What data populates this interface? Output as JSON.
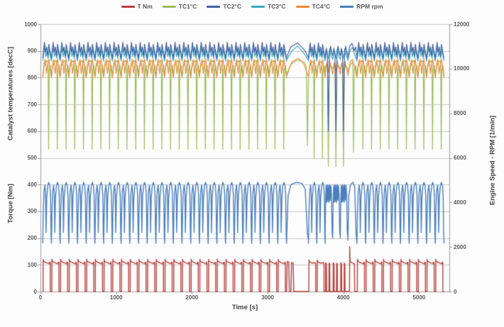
{
  "legend": {
    "items": [
      {
        "label": "T Nm",
        "color": "#B5423E"
      },
      {
        "label": "TC1°C",
        "color": "#9BBB59"
      },
      {
        "label": "TC2°C",
        "color": "#44609D"
      },
      {
        "label": "TC3°C",
        "color": "#3BA7C4"
      },
      {
        "label": "TC4°C",
        "color": "#EE8A3C"
      },
      {
        "label": "RPM rpm",
        "color": "#4A7EBB"
      }
    ]
  },
  "chart_data": {
    "type": "line",
    "title": "",
    "xlabel": "Time [s]",
    "grid": "horizontal",
    "legend_position": "top",
    "axes": {
      "x": {
        "min": 0,
        "max": 5400,
        "ticks": [
          0,
          1000,
          2000,
          3000,
          4000,
          5000
        ]
      },
      "y_left": {
        "min": 0,
        "max": 1000,
        "tick_step": 100,
        "titles": [
          "Catalyst temperatures [decC]",
          "Torque [Nm]"
        ]
      },
      "y_right": {
        "min": 0,
        "max": 12000,
        "tick_step": 2000,
        "title": "Engine Speed - RPM [1/min]"
      }
    },
    "series": [
      {
        "name": "T Nm",
        "axis": "left",
        "color": "#B5423E",
        "description": "Torque square-wave pulses 0 to ~105-120 Nm each cycle, single ~170 Nm spike near 4090 s"
      },
      {
        "name": "TC1°C",
        "axis": "left",
        "color": "#9BBB59",
        "description": "Catalyst temp ~805-865 degC with sharp dip to ~530 each cycle (to ~470 in anomaly cycles)"
      },
      {
        "name": "TC2°C",
        "axis": "left",
        "color": "#44609D",
        "description": "Catalyst temp ~870-935 degC spiky top band, dips to ~600 during anomaly cycles"
      },
      {
        "name": "TC3°C",
        "axis": "left",
        "color": "#3BA7C4",
        "description": "Catalyst temp ~860-918 degC spiky band"
      },
      {
        "name": "TC4°C",
        "axis": "left",
        "color": "#EE8A3C",
        "description": "Catalyst temp ~800-872 degC wavy band"
      },
      {
        "name": "RPM rpm",
        "axis": "right",
        "color": "#4A7EBB",
        "description": "Engine speed arcs ~2150-4900 rpm per cycle; long hump ~3250-3540 s; zigzag plateau cycles ~3760-4060 s"
      }
    ],
    "segments": [
      {
        "type": "normal",
        "t0": 30,
        "period": 115,
        "count": 28
      },
      {
        "type": "long",
        "t0": 3250,
        "period": 290,
        "count": 1
      },
      {
        "type": "normal_deep",
        "t0": 3540,
        "period": 110,
        "count": 2
      },
      {
        "type": "plateau",
        "t0": 3760,
        "period": 100,
        "count": 3
      },
      {
        "type": "recovery",
        "t0": 4060,
        "period": 120,
        "count": 1
      },
      {
        "type": "normal",
        "t0": 4180,
        "period": 115,
        "count": 10
      }
    ],
    "waveforms": {
      "normal": {
        "T Nm": [
          [
            0,
            0
          ],
          [
            0.045,
            0
          ],
          [
            0.05,
            121
          ],
          [
            0.1,
            113
          ],
          [
            0.45,
            107
          ],
          [
            0.78,
            104
          ],
          [
            0.8,
            110
          ],
          [
            0.86,
            108
          ],
          [
            0.865,
            0
          ],
          [
            1,
            0
          ]
        ],
        "TC1°C": [
          [
            0,
            806
          ],
          [
            0.12,
            838
          ],
          [
            0.35,
            858
          ],
          [
            0.55,
            864
          ],
          [
            0.62,
            851
          ],
          [
            0.675,
            532
          ],
          [
            0.74,
            828
          ],
          [
            0.88,
            846
          ],
          [
            1,
            806
          ]
        ],
        "TC2°C": [
          [
            0,
            872
          ],
          [
            0.08,
            900
          ],
          [
            0.2,
            932
          ],
          [
            0.32,
            895
          ],
          [
            0.45,
            915
          ],
          [
            0.58,
            880
          ],
          [
            0.7,
            925
          ],
          [
            0.82,
            902
          ],
          [
            1,
            872
          ]
        ],
        "TC3°C": [
          [
            0,
            862
          ],
          [
            0.1,
            888
          ],
          [
            0.22,
            916
          ],
          [
            0.35,
            878
          ],
          [
            0.5,
            900
          ],
          [
            0.62,
            872
          ],
          [
            0.75,
            906
          ],
          [
            0.88,
            880
          ],
          [
            1,
            862
          ]
        ],
        "TC4°C": [
          [
            0,
            800
          ],
          [
            0.15,
            852
          ],
          [
            0.3,
            868
          ],
          [
            0.42,
            815
          ],
          [
            0.55,
            845
          ],
          [
            0.7,
            870
          ],
          [
            0.85,
            830
          ],
          [
            1,
            800
          ]
        ],
        "RPM rpm": [
          [
            0,
            2160
          ],
          [
            0.06,
            3600
          ],
          [
            0.14,
            4450
          ],
          [
            0.25,
            4780
          ],
          [
            0.33,
            4400
          ],
          [
            0.38,
            2650
          ],
          [
            0.46,
            4200
          ],
          [
            0.58,
            4750
          ],
          [
            0.7,
            4900
          ],
          [
            0.82,
            4750
          ],
          [
            0.9,
            4300
          ],
          [
            0.96,
            2500
          ],
          [
            1,
            2160
          ]
        ]
      },
      "long": {
        "T Nm": [
          [
            0,
            0
          ],
          [
            0.03,
            112
          ],
          [
            0.1,
            110
          ],
          [
            0.13,
            0
          ],
          [
            0.2,
            0
          ],
          [
            0.23,
            108
          ],
          [
            0.3,
            107
          ],
          [
            0.33,
            0
          ],
          [
            1,
            0
          ]
        ],
        "TC1°C": [
          [
            0,
            812
          ],
          [
            0.2,
            850
          ],
          [
            0.5,
            866
          ],
          [
            0.8,
            858
          ],
          [
            0.9,
            842
          ],
          [
            0.95,
            545
          ],
          [
            1,
            812
          ]
        ],
        "TC2°C": [
          [
            0,
            875
          ],
          [
            0.2,
            915
          ],
          [
            0.5,
            930
          ],
          [
            0.8,
            905
          ],
          [
            1,
            875
          ]
        ],
        "TC3°C": [
          [
            0,
            865
          ],
          [
            0.25,
            900
          ],
          [
            0.5,
            918
          ],
          [
            0.75,
            895
          ],
          [
            1,
            865
          ]
        ],
        "TC4°C": [
          [
            0,
            805
          ],
          [
            0.25,
            860
          ],
          [
            0.55,
            872
          ],
          [
            0.8,
            850
          ],
          [
            0.93,
            815
          ],
          [
            1,
            805
          ]
        ],
        "RPM rpm": [
          [
            0,
            2200
          ],
          [
            0.07,
            4300
          ],
          [
            0.2,
            4800
          ],
          [
            0.45,
            4900
          ],
          [
            0.7,
            4850
          ],
          [
            0.85,
            4600
          ],
          [
            0.95,
            2600
          ],
          [
            1,
            2300
          ]
        ]
      },
      "normal_deep": {
        "T Nm": [
          [
            0,
            0
          ],
          [
            0.045,
            0
          ],
          [
            0.05,
            118
          ],
          [
            0.1,
            112
          ],
          [
            0.45,
            106
          ],
          [
            0.8,
            108
          ],
          [
            0.86,
            106
          ],
          [
            0.865,
            0
          ],
          [
            1,
            0
          ]
        ],
        "TC1°C": [
          [
            0,
            810
          ],
          [
            0.12,
            840
          ],
          [
            0.35,
            856
          ],
          [
            0.55,
            862
          ],
          [
            0.62,
            850
          ],
          [
            0.675,
            497
          ],
          [
            0.74,
            825
          ],
          [
            0.88,
            844
          ],
          [
            1,
            810
          ]
        ],
        "TC2°C": [
          [
            0,
            872
          ],
          [
            0.08,
            900
          ],
          [
            0.2,
            930
          ],
          [
            0.32,
            894
          ],
          [
            0.45,
            914
          ],
          [
            0.58,
            880
          ],
          [
            0.7,
            924
          ],
          [
            0.82,
            900
          ],
          [
            1,
            872
          ]
        ],
        "TC3°C": [
          [
            0,
            862
          ],
          [
            0.1,
            888
          ],
          [
            0.22,
            914
          ],
          [
            0.35,
            878
          ],
          [
            0.5,
            898
          ],
          [
            0.62,
            872
          ],
          [
            0.75,
            905
          ],
          [
            0.88,
            880
          ],
          [
            1,
            862
          ]
        ],
        "TC4°C": [
          [
            0,
            800
          ],
          [
            0.15,
            850
          ],
          [
            0.3,
            866
          ],
          [
            0.42,
            816
          ],
          [
            0.55,
            844
          ],
          [
            0.7,
            868
          ],
          [
            0.85,
            830
          ],
          [
            1,
            800
          ]
        ],
        "RPM rpm": [
          [
            0,
            2160
          ],
          [
            0.06,
            3600
          ],
          [
            0.14,
            4450
          ],
          [
            0.25,
            4780
          ],
          [
            0.33,
            4400
          ],
          [
            0.38,
            2650
          ],
          [
            0.46,
            4200
          ],
          [
            0.58,
            4750
          ],
          [
            0.7,
            4900
          ],
          [
            0.82,
            4750
          ],
          [
            0.9,
            4300
          ],
          [
            0.96,
            2500
          ],
          [
            1,
            2160
          ]
        ]
      },
      "plateau": {
        "T Nm": [
          [
            0,
            0
          ],
          [
            0.05,
            0
          ],
          [
            0.07,
            108
          ],
          [
            0.16,
            104
          ],
          [
            0.19,
            0
          ],
          [
            0.5,
            0
          ],
          [
            0.52,
            106
          ],
          [
            0.6,
            103
          ],
          [
            0.63,
            0
          ],
          [
            1,
            0
          ]
        ],
        "TC1°C": [
          [
            0,
            832
          ],
          [
            0.15,
            848
          ],
          [
            0.3,
            852
          ],
          [
            0.42,
            468
          ],
          [
            0.52,
            830
          ],
          [
            0.7,
            848
          ],
          [
            0.85,
            840
          ],
          [
            1,
            832
          ]
        ],
        "TC2°C": [
          [
            0,
            882
          ],
          [
            0.15,
            910
          ],
          [
            0.3,
            886
          ],
          [
            0.42,
            600
          ],
          [
            0.55,
            872
          ],
          [
            0.7,
            918
          ],
          [
            0.85,
            896
          ],
          [
            1,
            882
          ]
        ],
        "TC3°C": [
          [
            0,
            868
          ],
          [
            0.2,
            902
          ],
          [
            0.4,
            872
          ],
          [
            0.6,
            908
          ],
          [
            0.8,
            882
          ],
          [
            1,
            868
          ]
        ],
        "TC4°C": [
          [
            0,
            812
          ],
          [
            0.2,
            856
          ],
          [
            0.4,
            820
          ],
          [
            0.6,
            862
          ],
          [
            0.8,
            836
          ],
          [
            1,
            812
          ]
        ],
        "RPM rpm": [
          [
            0,
            2400
          ],
          [
            0.05,
            3900
          ],
          [
            0.12,
            4750
          ],
          [
            0.2,
            4000
          ],
          [
            0.28,
            4800
          ],
          [
            0.36,
            4050
          ],
          [
            0.44,
            4750
          ],
          [
            0.52,
            4000
          ],
          [
            0.6,
            4800
          ],
          [
            0.68,
            4100
          ],
          [
            0.76,
            4750
          ],
          [
            0.84,
            4300
          ],
          [
            0.92,
            2700
          ],
          [
            1,
            2400
          ]
        ]
      },
      "recovery": {
        "T Nm": [
          [
            0,
            0
          ],
          [
            0.18,
            0
          ],
          [
            0.2,
            168
          ],
          [
            0.24,
            112
          ],
          [
            0.55,
            106
          ],
          [
            0.72,
            104
          ],
          [
            0.75,
            0
          ],
          [
            1,
            0
          ]
        ],
        "TC1°C": [
          [
            0,
            818
          ],
          [
            0.3,
            850
          ],
          [
            0.55,
            858
          ],
          [
            0.62,
            520
          ],
          [
            0.7,
            832
          ],
          [
            0.88,
            844
          ],
          [
            1,
            810
          ]
        ],
        "TC2°C": [
          [
            0,
            874
          ],
          [
            0.2,
            918
          ],
          [
            0.45,
            928
          ],
          [
            0.7,
            900
          ],
          [
            0.85,
            915
          ],
          [
            1,
            872
          ]
        ],
        "TC3°C": [
          [
            0,
            864
          ],
          [
            0.25,
            902
          ],
          [
            0.5,
            912
          ],
          [
            0.75,
            884
          ],
          [
            1,
            862
          ]
        ],
        "TC4°C": [
          [
            0,
            806
          ],
          [
            0.25,
            858
          ],
          [
            0.5,
            868
          ],
          [
            0.75,
            840
          ],
          [
            1,
            800
          ]
        ],
        "RPM rpm": [
          [
            0,
            2300
          ],
          [
            0.1,
            4300
          ],
          [
            0.3,
            4800
          ],
          [
            0.55,
            4900
          ],
          [
            0.75,
            4700
          ],
          [
            0.9,
            2600
          ],
          [
            1,
            2200
          ]
        ]
      }
    }
  }
}
